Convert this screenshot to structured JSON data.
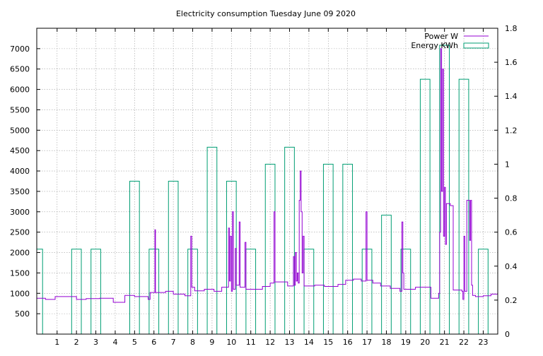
{
  "chart_data": {
    "type": "line",
    "title": "Electricity consumption Tuesday June 09 2020",
    "x_ticks": [
      1,
      2,
      3,
      4,
      5,
      6,
      7,
      8,
      9,
      10,
      11,
      12,
      13,
      14,
      15,
      16,
      17,
      18,
      19,
      20,
      21,
      22,
      23
    ],
    "xlim": [
      -0.05,
      23.75
    ],
    "y_left_ticks": [
      500,
      1000,
      1500,
      2000,
      2500,
      3000,
      3500,
      4000,
      4500,
      5000,
      5500,
      6000,
      6500,
      7000
    ],
    "y_left_lim": [
      0,
      7500
    ],
    "y_right_ticks": [
      "0",
      "0.2",
      "0.4",
      "0.6",
      "0.8",
      "1",
      "1.2",
      "1.4",
      "1.6",
      "1.8"
    ],
    "y_right_lim": [
      0,
      1.8
    ],
    "grid": true,
    "legend_position": "top-right",
    "series": [
      {
        "name": "Power W",
        "axis": "left",
        "color": "#9400d3",
        "points": [
          [
            -0.05,
            880
          ],
          [
            0.4,
            880
          ],
          [
            0.4,
            850
          ],
          [
            0.9,
            850
          ],
          [
            0.9,
            920
          ],
          [
            2.0,
            920
          ],
          [
            2.0,
            850
          ],
          [
            2.5,
            850
          ],
          [
            2.5,
            870
          ],
          [
            3.2,
            870
          ],
          [
            3.2,
            880
          ],
          [
            3.9,
            880
          ],
          [
            3.9,
            780
          ],
          [
            4.5,
            780
          ],
          [
            4.5,
            950
          ],
          [
            5.0,
            950
          ],
          [
            5.0,
            920
          ],
          [
            5.7,
            920
          ],
          [
            5.7,
            850
          ],
          [
            5.8,
            850
          ],
          [
            5.8,
            1020
          ],
          [
            6.05,
            1020
          ],
          [
            6.05,
            2560
          ],
          [
            6.08,
            2560
          ],
          [
            6.08,
            1020
          ],
          [
            6.6,
            1020
          ],
          [
            6.6,
            1050
          ],
          [
            7.0,
            1050
          ],
          [
            7.0,
            980
          ],
          [
            7.6,
            980
          ],
          [
            7.6,
            940
          ],
          [
            7.9,
            940
          ],
          [
            7.9,
            2400
          ],
          [
            7.95,
            2400
          ],
          [
            7.95,
            1150
          ],
          [
            8.1,
            1150
          ],
          [
            8.1,
            1060
          ],
          [
            8.6,
            1060
          ],
          [
            8.6,
            1100
          ],
          [
            9.1,
            1100
          ],
          [
            9.1,
            1050
          ],
          [
            9.5,
            1050
          ],
          [
            9.5,
            1150
          ],
          [
            9.85,
            1150
          ],
          [
            9.85,
            2600
          ],
          [
            9.9,
            2600
          ],
          [
            9.9,
            1300
          ],
          [
            9.95,
            1300
          ],
          [
            9.95,
            2400
          ],
          [
            10.0,
            2400
          ],
          [
            10.0,
            1050
          ],
          [
            10.05,
            1050
          ],
          [
            10.05,
            3000
          ],
          [
            10.1,
            3000
          ],
          [
            10.1,
            1100
          ],
          [
            10.2,
            1100
          ],
          [
            10.2,
            2100
          ],
          [
            10.25,
            2100
          ],
          [
            10.25,
            1200
          ],
          [
            10.4,
            1200
          ],
          [
            10.4,
            2750
          ],
          [
            10.45,
            2750
          ],
          [
            10.45,
            1150
          ],
          [
            10.7,
            1150
          ],
          [
            10.7,
            2250
          ],
          [
            10.75,
            2250
          ],
          [
            10.75,
            1100
          ],
          [
            11.6,
            1100
          ],
          [
            11.6,
            1170
          ],
          [
            12.0,
            1170
          ],
          [
            12.0,
            1250
          ],
          [
            12.2,
            1250
          ],
          [
            12.2,
            3000
          ],
          [
            12.25,
            3000
          ],
          [
            12.25,
            1280
          ],
          [
            12.9,
            1280
          ],
          [
            12.9,
            1180
          ],
          [
            13.2,
            1180
          ],
          [
            13.2,
            1900
          ],
          [
            13.25,
            1900
          ],
          [
            13.25,
            1200
          ],
          [
            13.3,
            1200
          ],
          [
            13.3,
            2000
          ],
          [
            13.35,
            2000
          ],
          [
            13.35,
            1300
          ],
          [
            13.4,
            1300
          ],
          [
            13.4,
            1500
          ],
          [
            13.45,
            1500
          ],
          [
            13.45,
            1250
          ],
          [
            13.5,
            1250
          ],
          [
            13.5,
            3280
          ],
          [
            13.55,
            3280
          ],
          [
            13.55,
            4000
          ],
          [
            13.6,
            4000
          ],
          [
            13.6,
            3000
          ],
          [
            13.65,
            3000
          ],
          [
            13.65,
            1500
          ],
          [
            13.7,
            1500
          ],
          [
            13.7,
            2400
          ],
          [
            13.75,
            2400
          ],
          [
            13.75,
            1180
          ],
          [
            14.3,
            1180
          ],
          [
            14.3,
            1200
          ],
          [
            14.8,
            1200
          ],
          [
            14.8,
            1170
          ],
          [
            15.5,
            1170
          ],
          [
            15.5,
            1220
          ],
          [
            15.9,
            1220
          ],
          [
            15.9,
            1320
          ],
          [
            16.3,
            1320
          ],
          [
            16.3,
            1350
          ],
          [
            16.7,
            1350
          ],
          [
            16.7,
            1300
          ],
          [
            16.95,
            1300
          ],
          [
            16.95,
            3000
          ],
          [
            17.0,
            3000
          ],
          [
            17.0,
            1320
          ],
          [
            17.3,
            1320
          ],
          [
            17.3,
            1250
          ],
          [
            17.7,
            1250
          ],
          [
            17.7,
            1180
          ],
          [
            18.2,
            1180
          ],
          [
            18.2,
            1120
          ],
          [
            18.7,
            1120
          ],
          [
            18.7,
            1050
          ],
          [
            18.8,
            1050
          ],
          [
            18.8,
            2750
          ],
          [
            18.85,
            2750
          ],
          [
            18.85,
            1500
          ],
          [
            18.9,
            1500
          ],
          [
            18.9,
            1100
          ],
          [
            19.5,
            1100
          ],
          [
            19.5,
            1150
          ],
          [
            20.3,
            1150
          ],
          [
            20.3,
            880
          ],
          [
            20.7,
            880
          ],
          [
            20.7,
            1000
          ],
          [
            20.75,
            1000
          ],
          [
            20.75,
            2500
          ],
          [
            20.8,
            2500
          ],
          [
            20.8,
            7000
          ],
          [
            20.85,
            7000
          ],
          [
            20.85,
            3500
          ],
          [
            20.9,
            3500
          ],
          [
            20.9,
            6500
          ],
          [
            20.95,
            6500
          ],
          [
            20.95,
            2400
          ],
          [
            21.0,
            2400
          ],
          [
            21.0,
            3600
          ],
          [
            21.05,
            3600
          ],
          [
            21.05,
            2200
          ],
          [
            21.1,
            2200
          ],
          [
            21.1,
            3200
          ],
          [
            21.3,
            3200
          ],
          [
            21.3,
            3150
          ],
          [
            21.45,
            3150
          ],
          [
            21.45,
            1080
          ],
          [
            21.9,
            1080
          ],
          [
            21.9,
            1050
          ],
          [
            21.95,
            1050
          ],
          [
            21.95,
            850
          ],
          [
            22.0,
            850
          ],
          [
            22.0,
            2400
          ],
          [
            22.05,
            2400
          ],
          [
            22.05,
            1050
          ],
          [
            22.15,
            1050
          ],
          [
            22.15,
            3280
          ],
          [
            22.3,
            3280
          ],
          [
            22.3,
            2300
          ],
          [
            22.35,
            2300
          ],
          [
            22.35,
            3280
          ],
          [
            22.4,
            3280
          ],
          [
            22.4,
            1200
          ],
          [
            22.45,
            1200
          ],
          [
            22.45,
            950
          ],
          [
            22.6,
            950
          ],
          [
            22.6,
            920
          ],
          [
            23.0,
            920
          ],
          [
            23.0,
            940
          ],
          [
            23.4,
            940
          ],
          [
            23.4,
            980
          ],
          [
            23.75,
            980
          ]
        ]
      },
      {
        "name": "Energy KWh",
        "axis": "right",
        "color": "#009e73",
        "bars": [
          {
            "hour": 0,
            "value": 0.5
          },
          {
            "hour": 2,
            "value": 0.5
          },
          {
            "hour": 3,
            "value": 0.5
          },
          {
            "hour": 5,
            "value": 0.9
          },
          {
            "hour": 6,
            "value": 0.5
          },
          {
            "hour": 7,
            "value": 0.9
          },
          {
            "hour": 8,
            "value": 0.5
          },
          {
            "hour": 9,
            "value": 1.1
          },
          {
            "hour": 10,
            "value": 0.9
          },
          {
            "hour": 11,
            "value": 0.5
          },
          {
            "hour": 12,
            "value": 1.0
          },
          {
            "hour": 13,
            "value": 1.1
          },
          {
            "hour": 14,
            "value": 0.5
          },
          {
            "hour": 15,
            "value": 1.0
          },
          {
            "hour": 16,
            "value": 1.0
          },
          {
            "hour": 17,
            "value": 0.5
          },
          {
            "hour": 18,
            "value": 0.7
          },
          {
            "hour": 19,
            "value": 0.5
          },
          {
            "hour": 20,
            "value": 1.5
          },
          {
            "hour": 21,
            "value": 1.7
          },
          {
            "hour": 22,
            "value": 1.5
          },
          {
            "hour": 23,
            "value": 0.5
          }
        ]
      }
    ]
  }
}
